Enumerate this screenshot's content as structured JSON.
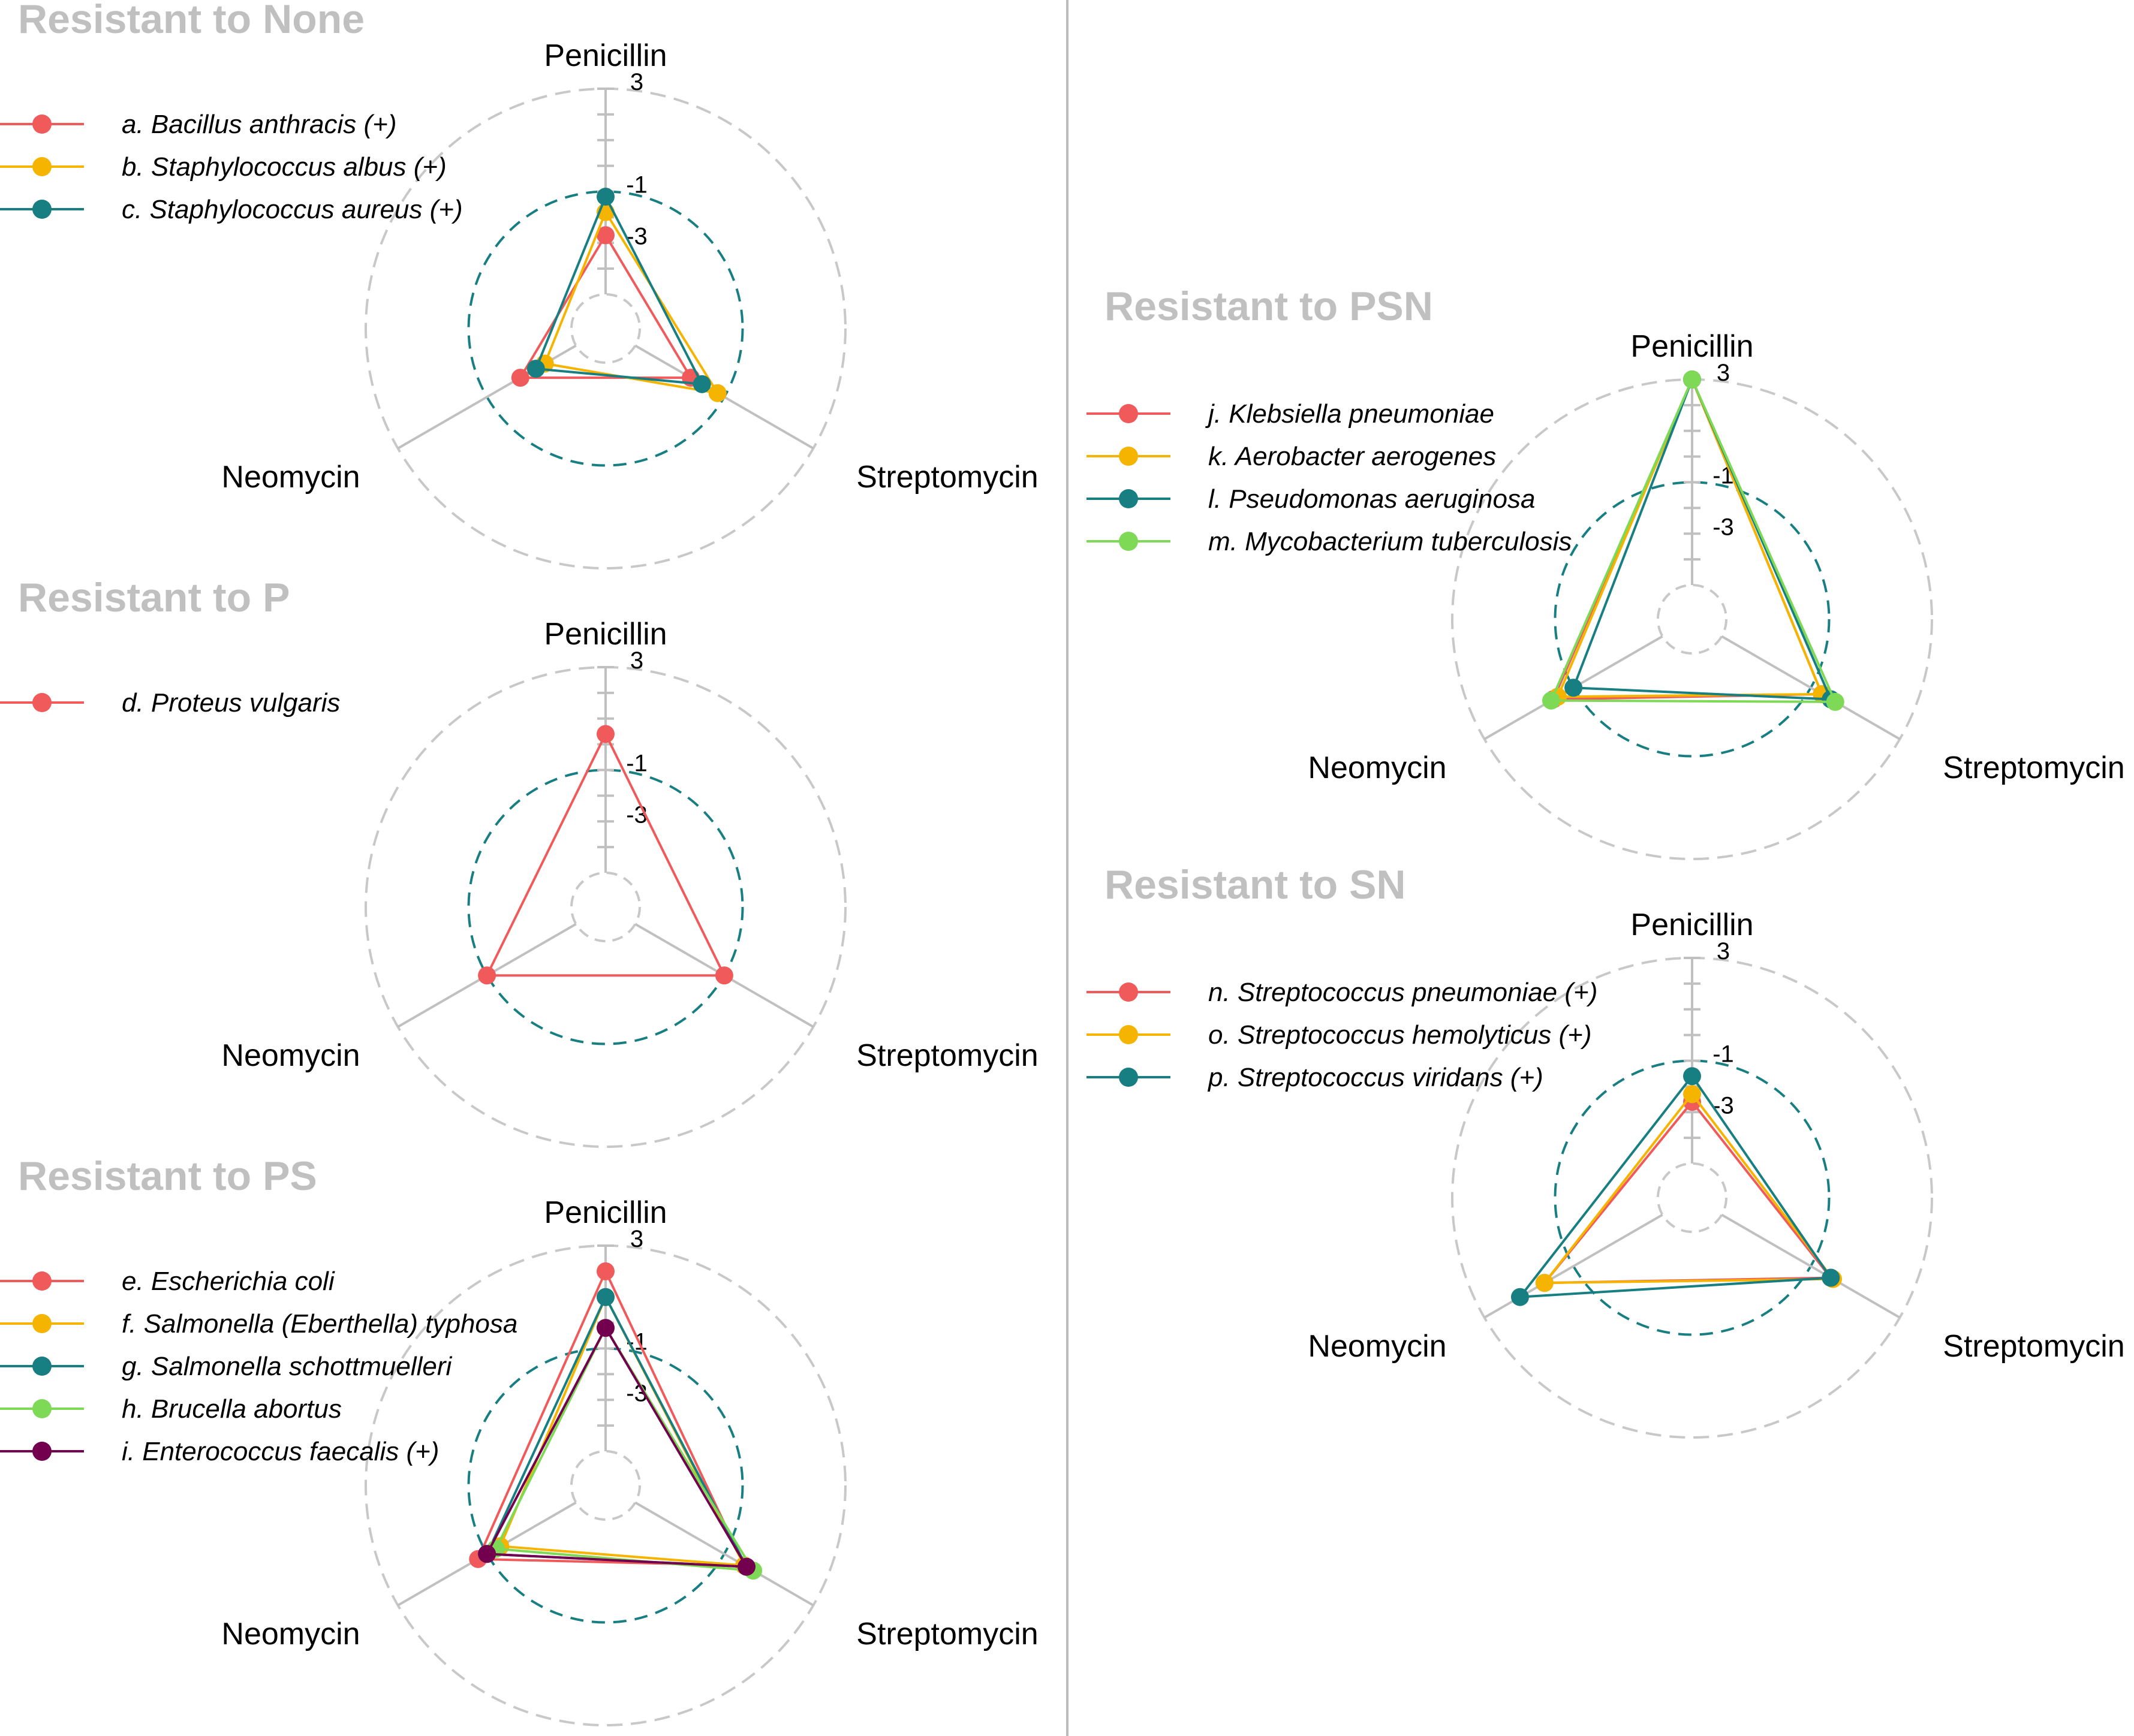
{
  "chart_data": [
    {
      "type": "radar",
      "title": "Resistant to None",
      "axes": [
        "Penicillin",
        "Streptomycin",
        "Neomycin"
      ],
      "tick_labels": [
        "3",
        "-1",
        "-3"
      ],
      "radial_range": [
        -5,
        3
      ],
      "reference_ring": -1,
      "legend_placement": "top-left",
      "series": [
        {
          "name": "a. Bacillus anthracis (+)",
          "color": "#f05a5a",
          "values": [
            -2.7,
            -2.5,
            -2.5
          ]
        },
        {
          "name": "b. Staphylococcus albus (+)",
          "color": "#f5b400",
          "values": [
            -1.8,
            -1.3,
            -3.6
          ]
        },
        {
          "name": "c. Staphylococcus aureus (+)",
          "color": "#177e82",
          "values": [
            -1.2,
            -2.0,
            -3.2
          ]
        }
      ]
    },
    {
      "type": "radar",
      "title": "Resistant to P",
      "axes": [
        "Penicillin",
        "Streptomycin",
        "Neomycin"
      ],
      "tick_labels": [
        "3",
        "-1",
        "-3"
      ],
      "radial_range": [
        -5,
        3
      ],
      "reference_ring": -1,
      "legend_placement": "top-left",
      "series": [
        {
          "name": "d. Proteus vulgaris",
          "color": "#f05a5a",
          "values": [
            0.4,
            -1.0,
            -1.0
          ]
        }
      ]
    },
    {
      "type": "radar",
      "title": "Resistant to PS",
      "axes": [
        "Penicillin",
        "Streptomycin",
        "Neomycin"
      ],
      "tick_labels": [
        "3",
        "-1",
        "-3"
      ],
      "radial_range": [
        -5,
        3
      ],
      "reference_ring": -1,
      "legend_placement": "top-left",
      "series": [
        {
          "name": "e. Escherichia coli",
          "color": "#f05a5a",
          "values": [
            2.0,
            -0.1,
            -0.6
          ]
        },
        {
          "name": "f. Salmonella (Eberthella) typhosa",
          "color": "#f5b400",
          "values": [
            1.0,
            -0.1,
            -1.6
          ]
        },
        {
          "name": "g. Salmonella schottmuelleri",
          "color": "#177e82",
          "values": [
            1.0,
            0.0,
            -1.0
          ]
        },
        {
          "name": "h. Brucella abortus",
          "color": "#7ed957",
          "values": [
            -0.2,
            0.3,
            -1.4
          ]
        },
        {
          "name": "i. Enterococcus faecalis (+)",
          "color": "#72004f",
          "values": [
            -0.2,
            0.0,
            -1.0
          ]
        }
      ]
    },
    {
      "type": "radar",
      "title": "Resistant to PSN",
      "axes": [
        "Penicillin",
        "Streptomycin",
        "Neomycin"
      ],
      "tick_labels": [
        "3",
        "-1",
        "-3"
      ],
      "radial_range": [
        -5,
        3
      ],
      "reference_ring": -1,
      "legend_placement": "top-left",
      "series": [
        {
          "name": "j. Klebsiella pneumoniae",
          "color": "#f05a5a",
          "values": [
            3.0,
            -0.5,
            -0.1
          ]
        },
        {
          "name": "k. Aerobacter aerogenes",
          "color": "#f5b400",
          "values": [
            3.0,
            -0.5,
            -0.3
          ]
        },
        {
          "name": "l. Pseudomonas aeruginosa",
          "color": "#177e82",
          "values": [
            3.0,
            -0.1,
            -1.0
          ]
        },
        {
          "name": "m. Mycobacterium tuberculosis",
          "color": "#7ed957",
          "values": [
            3.0,
            0.1,
            0.0
          ]
        }
      ]
    },
    {
      "type": "radar",
      "title": "Resistant to SN",
      "axes": [
        "Penicillin",
        "Streptomycin",
        "Neomycin"
      ],
      "tick_labels": [
        "3",
        "-1",
        "-3"
      ],
      "radial_range": [
        -5,
        3
      ],
      "reference_ring": -1,
      "legend_placement": "top-left",
      "series": [
        {
          "name": "n. Streptococcus pneumoniae (+)",
          "color": "#f05a5a",
          "values": [
            -2.6,
            -0.1,
            0.3
          ]
        },
        {
          "name": "o. Streptococcus hemolyticus (+)",
          "color": "#f5b400",
          "values": [
            -2.3,
            0.0,
            0.3
          ]
        },
        {
          "name": "p. Streptococcus viridans (+)",
          "color": "#177e82",
          "values": [
            -1.6,
            -0.1,
            1.4
          ]
        }
      ]
    }
  ]
}
